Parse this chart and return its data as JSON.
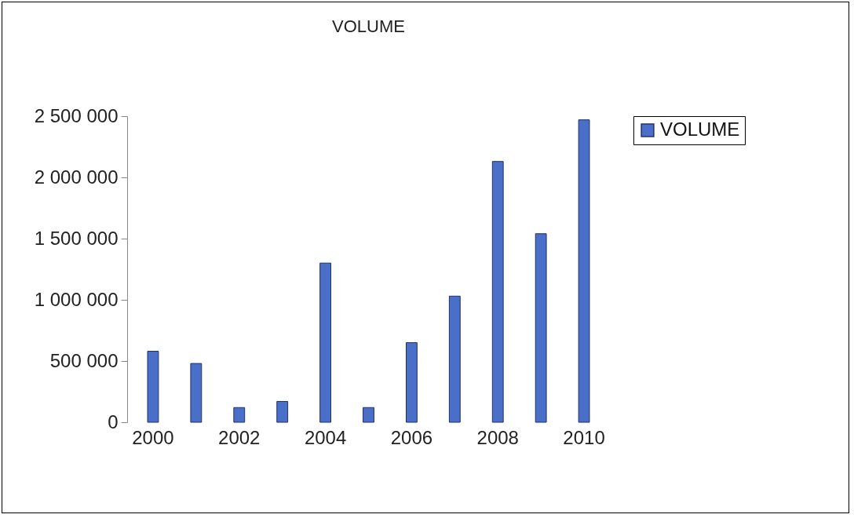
{
  "chart_data": {
    "type": "bar",
    "title": "VOLUME",
    "categories": [
      "2000",
      null,
      "2002",
      null,
      "2004",
      null,
      "2006",
      null,
      "2008",
      null,
      "2010"
    ],
    "series": [
      {
        "name": "VOLUME",
        "color": "#4a6fc9",
        "values": [
          580000,
          480000,
          120000,
          170000,
          1300000,
          120000,
          650000,
          1030000,
          2130000,
          1540000,
          2470000
        ]
      }
    ],
    "ylim": [
      0,
      2500000
    ],
    "yticks": [
      {
        "value": 0,
        "label": "0"
      },
      {
        "value": 500000,
        "label": "500 000"
      },
      {
        "value": 1000000,
        "label": "1 000 000"
      },
      {
        "value": 1500000,
        "label": "1 500 000"
      },
      {
        "value": 2000000,
        "label": "2 000 000"
      },
      {
        "value": 2500000,
        "label": "2 500 000"
      }
    ],
    "grid": false,
    "legend": "right"
  }
}
